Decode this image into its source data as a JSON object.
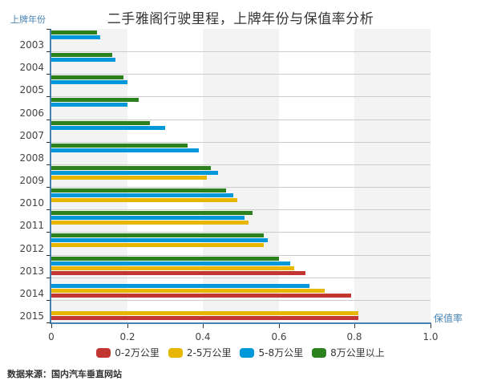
{
  "title": "二手雅阁行驶里程，上牌年份与保值率分析",
  "y_axis_name": "上牌年份",
  "x_axis_name": "保值率",
  "source": "数据来源：国内汽车垂直网站",
  "colors": {
    "0-2万公里": "#c23531",
    "2-5万公里": "#e6b600",
    "5-8万公里": "#0098d9",
    "8万公里以上": "#2b821d",
    "axis": "#4682b4",
    "band": "#f3f3f3",
    "grid": "#cccccc"
  },
  "legend": [
    {
      "label": "0-2万公里",
      "color": "#c23531"
    },
    {
      "label": "2-5万公里",
      "color": "#e6b600"
    },
    {
      "label": "5-8万公里",
      "color": "#0098d9"
    },
    {
      "label": "8万公里以上",
      "color": "#2b821d"
    }
  ],
  "x_ticks": [
    "0",
    "0.2",
    "0.4",
    "0.6",
    "0.8",
    "1.0"
  ],
  "chart_data": {
    "type": "bar",
    "orientation": "horizontal",
    "title": "二手雅阁行驶里程，上牌年份与保值率分析",
    "xlabel": "保值率",
    "ylabel": "上牌年份",
    "xlim": [
      0,
      1.0
    ],
    "x_ticks": [
      0,
      0.2,
      0.4,
      0.6,
      0.8,
      1.0
    ],
    "grid": "alternating vertical bands + horizontal category lines",
    "legend_position": "bottom",
    "categories": [
      "2003",
      "2004",
      "2005",
      "2006",
      "2007",
      "2008",
      "2009",
      "2010",
      "2011",
      "2012",
      "2013",
      "2014",
      "2015"
    ],
    "series": [
      {
        "name": "0-2万公里",
        "color": "#c23531",
        "values": [
          null,
          null,
          null,
          null,
          null,
          null,
          null,
          null,
          null,
          null,
          0.67,
          0.79,
          0.81
        ]
      },
      {
        "name": "2-5万公里",
        "color": "#e6b600",
        "values": [
          null,
          null,
          null,
          null,
          null,
          null,
          0.41,
          0.49,
          0.52,
          0.56,
          0.64,
          0.72,
          0.81
        ]
      },
      {
        "name": "5-8万公里",
        "color": "#0098d9",
        "values": [
          0.13,
          0.17,
          0.2,
          0.2,
          0.3,
          0.39,
          0.44,
          0.48,
          0.51,
          0.57,
          0.63,
          0.68,
          null
        ]
      },
      {
        "name": "8万公里以上",
        "color": "#2b821d",
        "values": [
          0.12,
          0.16,
          0.19,
          0.23,
          0.26,
          0.36,
          0.42,
          0.46,
          0.53,
          0.56,
          0.6,
          null,
          null
        ]
      }
    ]
  }
}
